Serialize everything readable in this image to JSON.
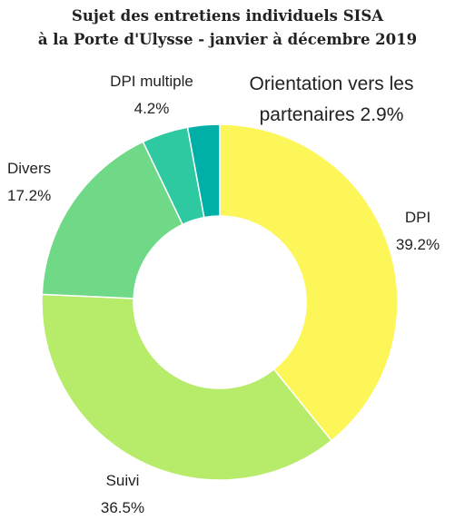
{
  "chart_data": {
    "type": "donut",
    "title": [
      "Sujet des entretiens individuels SISA",
      "à la Porte d'Ulysse - janvier à décembre 2019"
    ],
    "categories": [
      "DPI",
      "Suivi",
      "Divers",
      "DPI multiple",
      "Orientation vers les partenaires"
    ],
    "values": [
      39.2,
      36.5,
      17.2,
      4.2,
      2.9
    ],
    "value_labels": [
      "39.2%",
      "36.5%",
      "17.2%",
      "4.2%",
      "2.9%"
    ],
    "colors": [
      "#fdf659",
      "#b7ec6b",
      "#6fd988",
      "#2fc9a1",
      "#00b0a7"
    ]
  }
}
